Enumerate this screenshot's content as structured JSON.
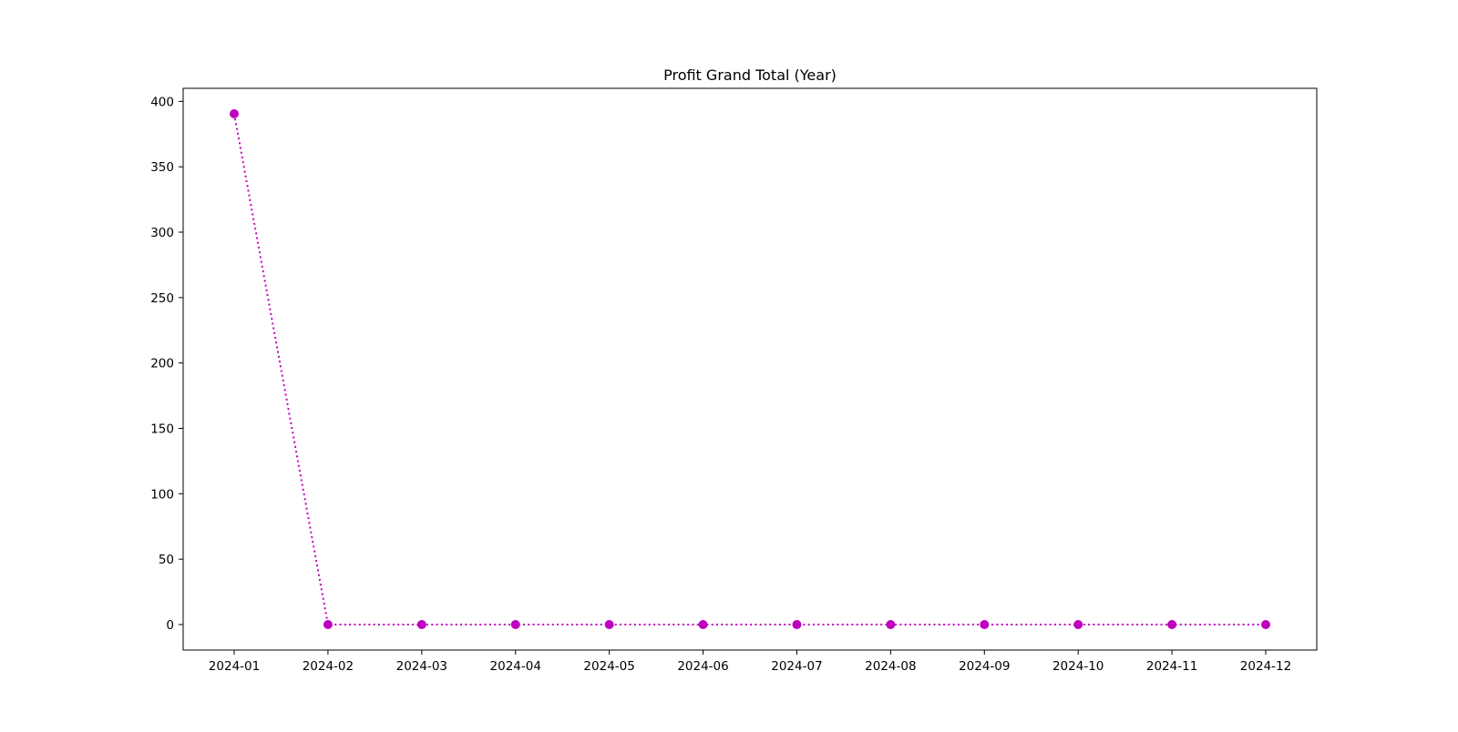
{
  "chart_data": {
    "type": "line",
    "title": "Profit Grand Total (Year)",
    "xlabel": "",
    "ylabel": "",
    "categories": [
      "2024-01",
      "2024-02",
      "2024-03",
      "2024-04",
      "2024-05",
      "2024-06",
      "2024-07",
      "2024-08",
      "2024-09",
      "2024-10",
      "2024-11",
      "2024-12"
    ],
    "series": [
      {
        "values": [
          390.5,
          0,
          0,
          0,
          0,
          0,
          0,
          0,
          0,
          0,
          0,
          0
        ],
        "color": "#bf00bf",
        "line_style": "dotted",
        "marker": "circle"
      }
    ],
    "yticks": [
      0,
      50,
      100,
      150,
      200,
      250,
      300,
      350,
      400
    ],
    "ylim": [
      -19.5,
      410
    ],
    "grid": false,
    "legend": "none"
  }
}
